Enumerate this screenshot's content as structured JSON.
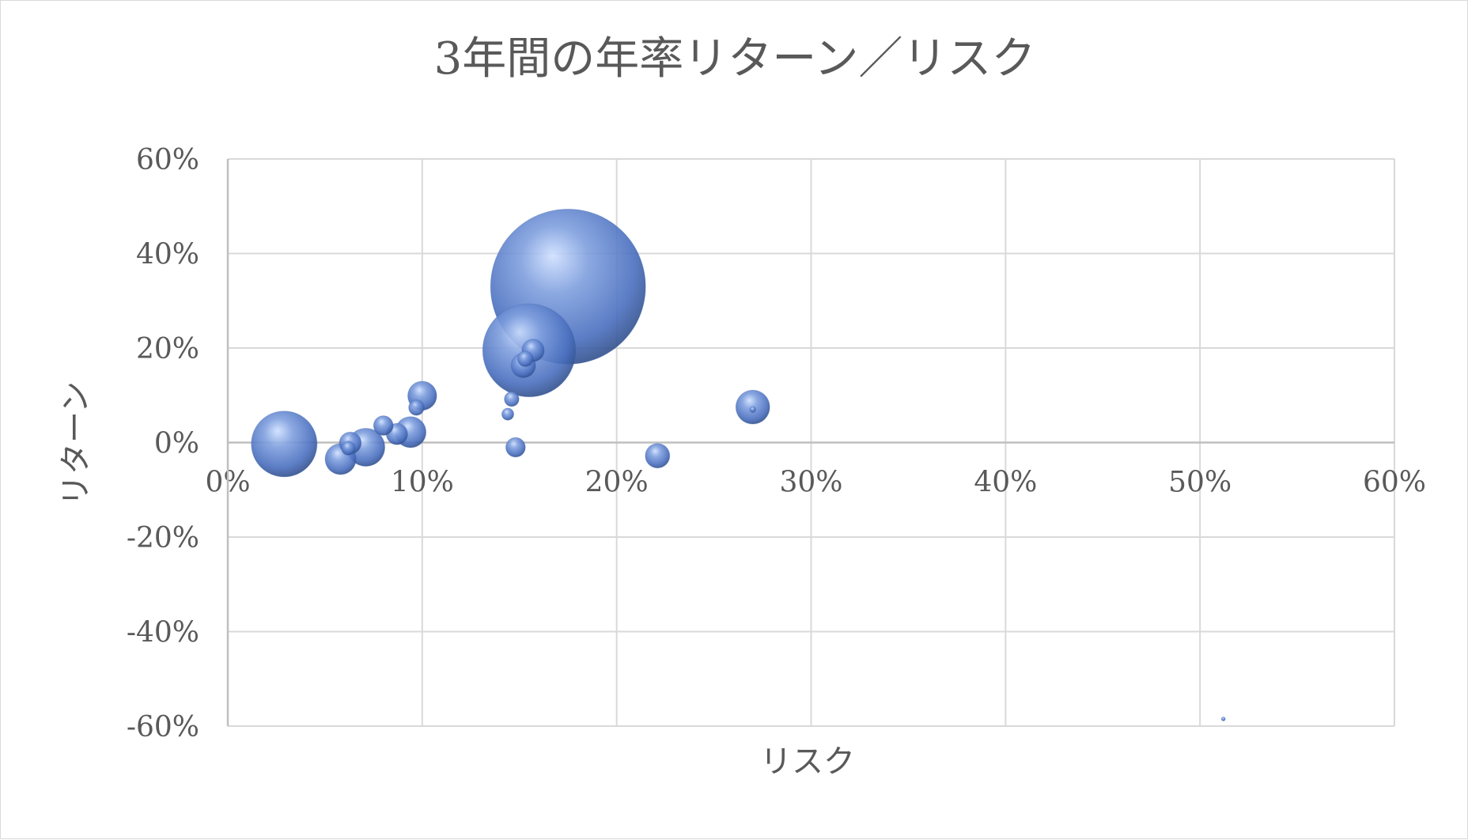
{
  "chart_data": {
    "type": "bubble",
    "title": "3年間の年率リターン／リスク",
    "xlabel": "リスク",
    "ylabel": "リターン",
    "xlim": [
      0,
      0.6
    ],
    "ylim": [
      -0.6,
      0.6
    ],
    "x_ticks": [
      "0%",
      "10%",
      "20%",
      "30%",
      "40%",
      "50%",
      "60%"
    ],
    "y_ticks": [
      "60%",
      "40%",
      "20%",
      "0%",
      "-20%",
      "-40%",
      "-60%"
    ],
    "grid": true,
    "legend": "none",
    "bubble_color": "#4472c4",
    "points": [
      {
        "x": 0.175,
        "y": 0.33,
        "size": 100
      },
      {
        "x": 0.155,
        "y": 0.195,
        "size": 36
      },
      {
        "x": 0.029,
        "y": -0.003,
        "size": 18
      },
      {
        "x": 0.071,
        "y": -0.01,
        "size": 6
      },
      {
        "x": 0.058,
        "y": -0.035,
        "size": 4
      },
      {
        "x": 0.063,
        "y": -0.001,
        "size": 2
      },
      {
        "x": 0.062,
        "y": -0.012,
        "size": 0.8
      },
      {
        "x": 0.08,
        "y": 0.036,
        "size": 1.6
      },
      {
        "x": 0.087,
        "y": 0.018,
        "size": 1.9
      },
      {
        "x": 0.094,
        "y": 0.022,
        "size": 4
      },
      {
        "x": 0.097,
        "y": 0.074,
        "size": 1
      },
      {
        "x": 0.1,
        "y": 0.099,
        "size": 3.5
      },
      {
        "x": 0.144,
        "y": 0.06,
        "size": 0.6
      },
      {
        "x": 0.146,
        "y": 0.092,
        "size": 0.9
      },
      {
        "x": 0.148,
        "y": -0.01,
        "size": 1.6
      },
      {
        "x": 0.152,
        "y": 0.163,
        "size": 2.5
      },
      {
        "x": 0.153,
        "y": 0.177,
        "size": 1
      },
      {
        "x": 0.157,
        "y": 0.195,
        "size": 2.1
      },
      {
        "x": 0.221,
        "y": -0.028,
        "size": 2.5
      },
      {
        "x": 0.27,
        "y": 0.075,
        "size": 4.8
      },
      {
        "x": 0.27,
        "y": 0.07,
        "size": 0.15
      },
      {
        "x": 0.512,
        "y": -0.585,
        "size": 0.06
      }
    ]
  }
}
